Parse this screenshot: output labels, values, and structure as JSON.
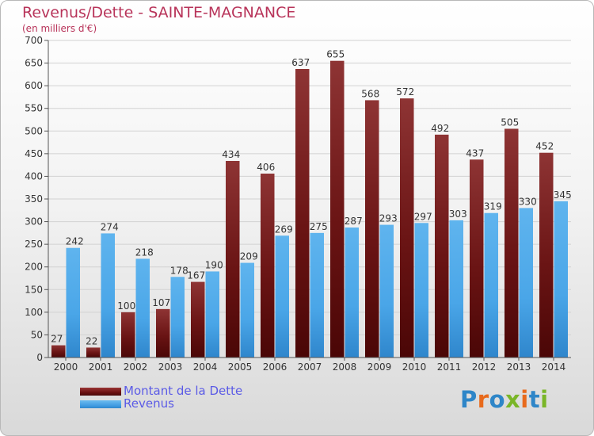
{
  "title": "Revenus/Dette - SAINTE-MAGNANCE",
  "subtitle": "(en milliers d'€)",
  "logo_text": "Proxiti",
  "colors": {
    "title": "#b8345a",
    "legend_text": "#5b5be6",
    "debt_bar": "#8a2828",
    "revenue_bar": "#4aa6e8"
  },
  "legend": [
    {
      "label": "Montant de la Dette",
      "color": "#7a1e1e"
    },
    {
      "label": "Revenus",
      "color": "#4aa6e8"
    }
  ],
  "chart_data": {
    "type": "bar",
    "title": "Revenus/Dette - SAINTE-MAGNANCE",
    "subtitle": "(en milliers d'€)",
    "categories": [
      "2000",
      "2001",
      "2002",
      "2003",
      "2004",
      "2005",
      "2006",
      "2007",
      "2008",
      "2009",
      "2010",
      "2011",
      "2012",
      "2013",
      "2014"
    ],
    "series": [
      {
        "name": "Montant de la Dette",
        "values": [
          27,
          22,
          100,
          107,
          167,
          434,
          406,
          637,
          655,
          568,
          572,
          492,
          437,
          505,
          452
        ]
      },
      {
        "name": "Revenus",
        "values": [
          242,
          274,
          218,
          178,
          190,
          209,
          269,
          275,
          287,
          293,
          297,
          303,
          319,
          330,
          345
        ]
      }
    ],
    "yticks": [
      0,
      50,
      100,
      150,
      200,
      250,
      300,
      350,
      400,
      450,
      500,
      550,
      600,
      650,
      700
    ],
    "ylim": [
      0,
      700
    ],
    "grid": true,
    "legend_position": "bottom-left"
  }
}
